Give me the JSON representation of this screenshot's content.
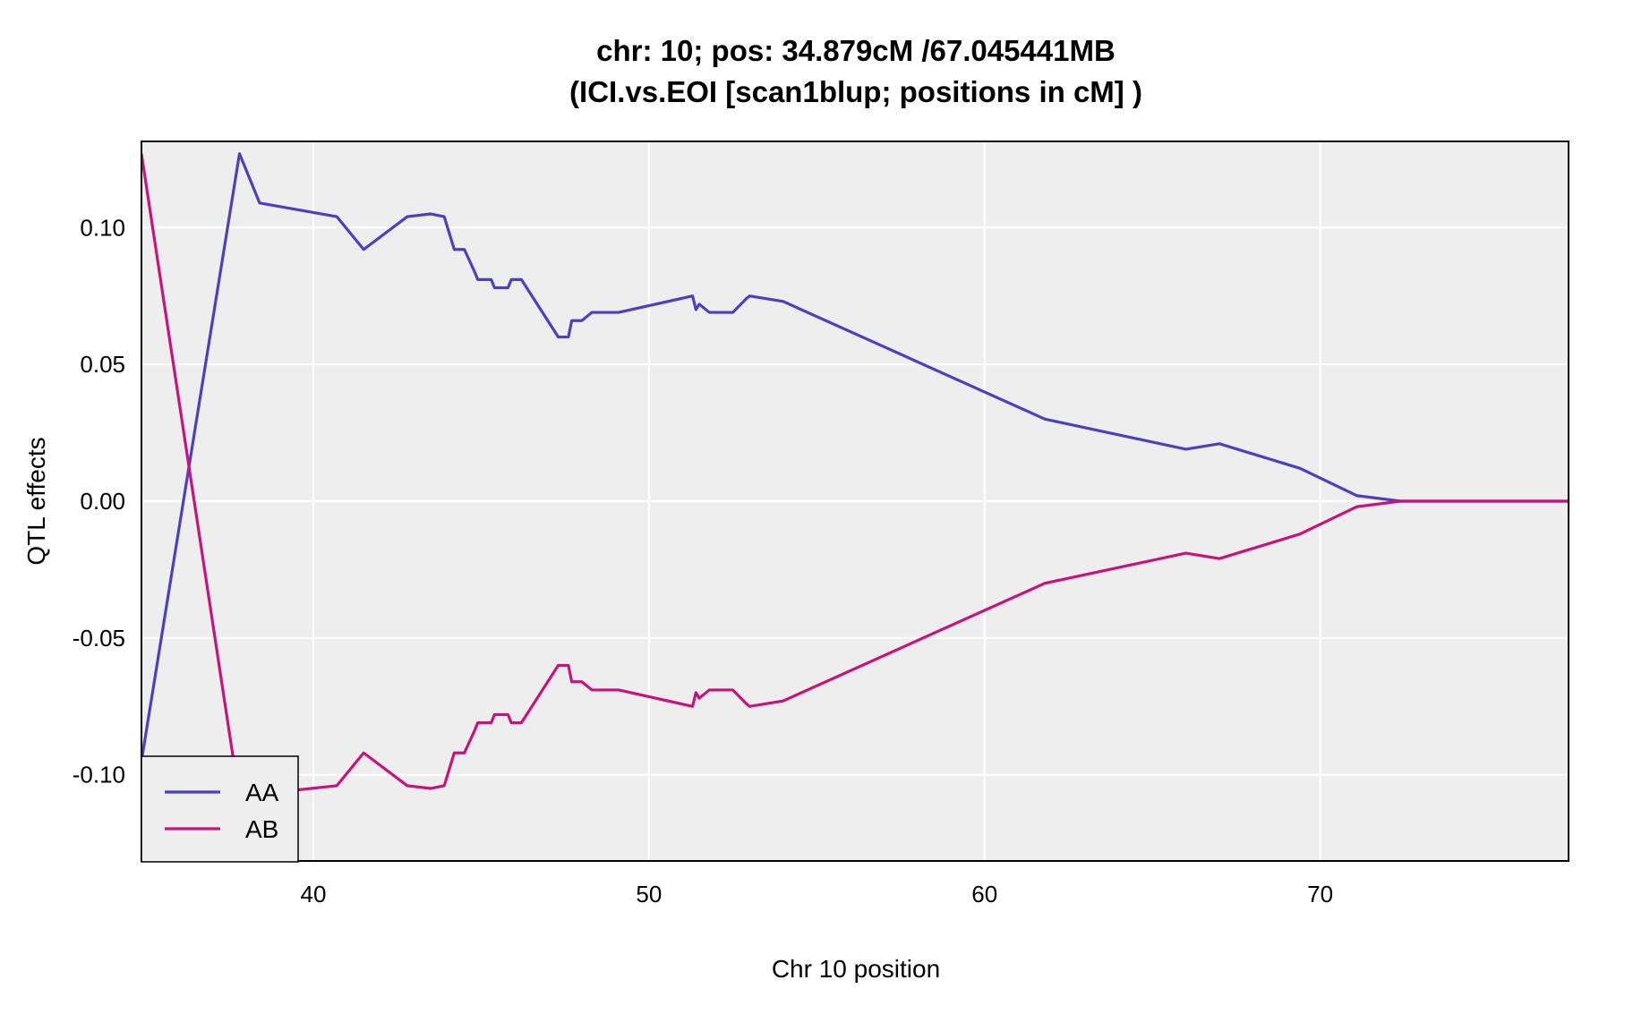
{
  "chart_data": {
    "type": "line",
    "title": "chr: 10; pos: 34.879cM /67.045441MB",
    "subtitle": "(ICI.vs.EOI [scan1blup; positions in cM] )",
    "xlabel": "Chr 10 position",
    "ylabel": "QTL effects",
    "xlim": [
      34.879,
      77.4
    ],
    "ylim": [
      -0.1315,
      0.1315
    ],
    "xticks": [
      40,
      50,
      60,
      70
    ],
    "xtick_labels": [
      "40",
      "50",
      "60",
      "70"
    ],
    "yticks": [
      -0.1,
      -0.05,
      0.0,
      0.05,
      0.1
    ],
    "ytick_labels": [
      "-0.10",
      "-0.05",
      "0.00",
      "0.05",
      "0.10"
    ],
    "grid": true,
    "legend_position": "bottom-left",
    "background_color": "#eeeeee",
    "series": [
      {
        "name": "AA",
        "color": "#4e3fbf",
        "x": [
          34.879,
          37.8,
          38.4,
          40.7,
          41.5,
          42.8,
          43.5,
          43.9,
          44.2,
          44.5,
          44.8,
          44.9,
          45.3,
          45.4,
          45.8,
          45.9,
          46.2,
          47.3,
          47.6,
          47.7,
          48.0,
          48.3,
          49.1,
          51.3,
          51.4,
          51.5,
          51.8,
          52.5,
          52.9,
          53.0,
          54.0,
          61.8,
          66.0,
          67.0,
          69.4,
          71.1,
          72.4,
          77.4
        ],
        "y": [
          -0.095,
          0.127,
          0.109,
          0.104,
          0.092,
          0.104,
          0.105,
          0.104,
          0.092,
          0.092,
          0.084,
          0.081,
          0.081,
          0.078,
          0.078,
          0.081,
          0.081,
          0.06,
          0.06,
          0.066,
          0.066,
          0.069,
          0.069,
          0.075,
          0.07,
          0.072,
          0.069,
          0.069,
          0.074,
          0.075,
          0.073,
          0.03,
          0.019,
          0.021,
          0.012,
          0.002,
          0.0,
          0.0
        ]
      },
      {
        "name": "AB",
        "color": "#c8137b",
        "x": [
          34.879,
          37.8,
          38.4,
          40.7,
          41.5,
          42.8,
          43.5,
          43.9,
          44.2,
          44.5,
          44.8,
          44.9,
          45.3,
          45.4,
          45.8,
          45.9,
          46.2,
          47.3,
          47.6,
          47.7,
          48.0,
          48.3,
          49.1,
          51.3,
          51.4,
          51.5,
          51.8,
          52.5,
          52.9,
          53.0,
          54.0,
          61.8,
          66.0,
          67.0,
          69.4,
          71.1,
          72.4,
          77.4
        ],
        "y": [
          0.127,
          -0.109,
          -0.107,
          -0.104,
          -0.092,
          -0.104,
          -0.105,
          -0.104,
          -0.092,
          -0.092,
          -0.084,
          -0.081,
          -0.081,
          -0.078,
          -0.078,
          -0.081,
          -0.081,
          -0.06,
          -0.06,
          -0.066,
          -0.066,
          -0.069,
          -0.069,
          -0.075,
          -0.07,
          -0.072,
          -0.069,
          -0.069,
          -0.074,
          -0.075,
          -0.073,
          -0.03,
          -0.019,
          -0.021,
          -0.012,
          -0.002,
          0.0,
          0.0
        ]
      }
    ]
  }
}
